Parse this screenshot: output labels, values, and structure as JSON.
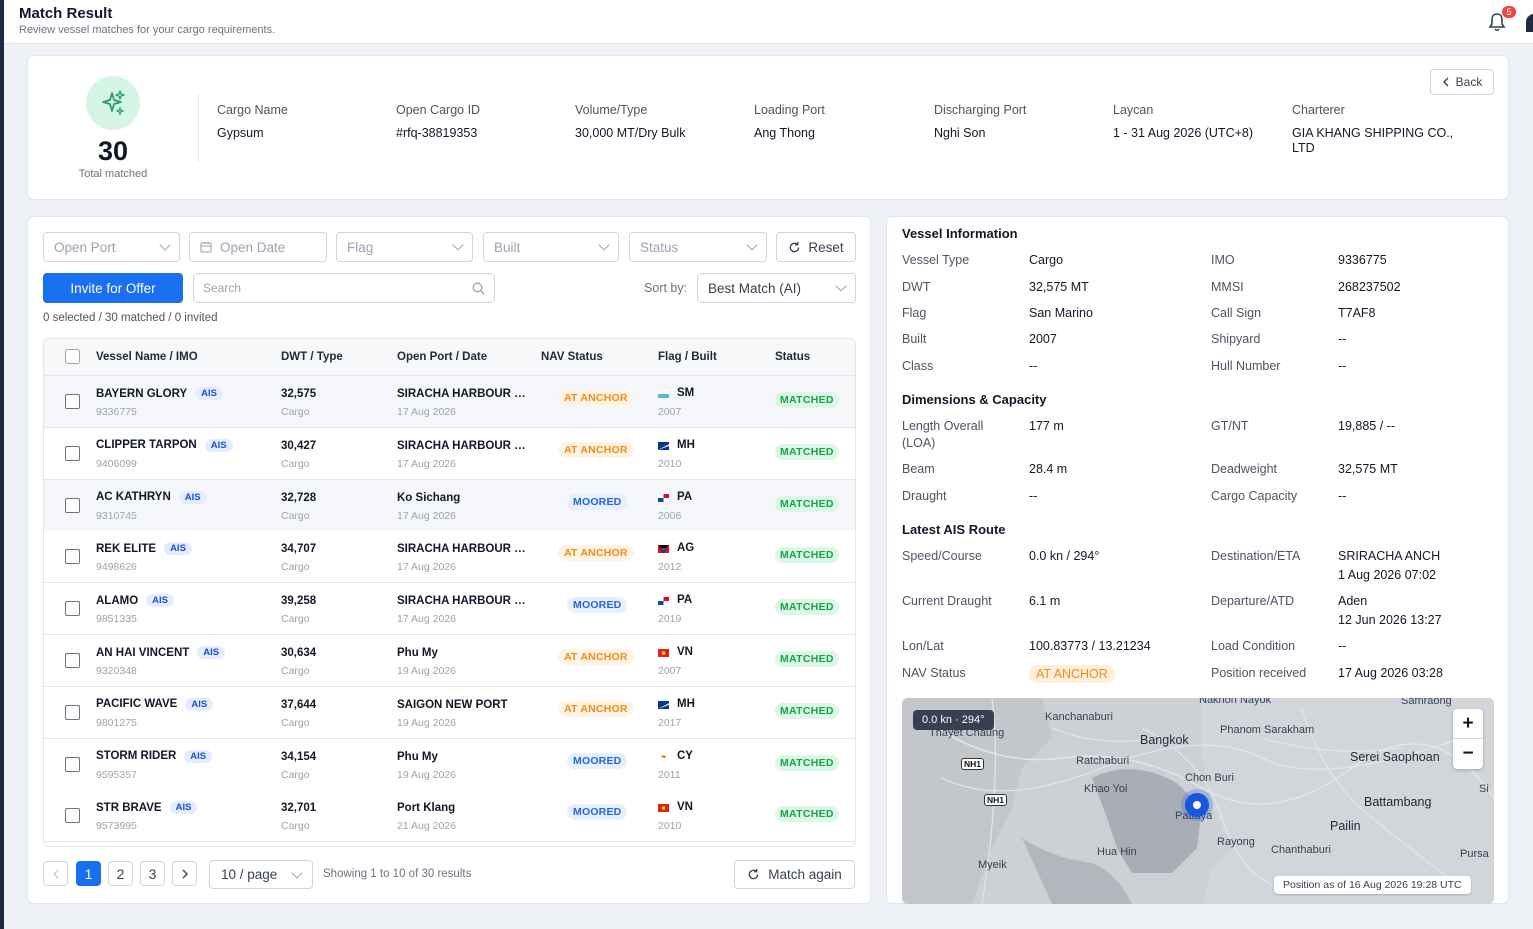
{
  "header": {
    "title": "Match Result",
    "subtitle": "Review vessel matches for your cargo requirements.",
    "notification_count": "5"
  },
  "summary": {
    "total": "30",
    "total_label": "Total matched",
    "back_label": "Back",
    "fields": [
      {
        "label": "Cargo Name",
        "value": "Gypsum"
      },
      {
        "label": "Open Cargo ID",
        "value": "#rfq-38819353"
      },
      {
        "label": "Volume/Type",
        "value": "30,000 MT/Dry Bulk"
      },
      {
        "label": "Loading Port",
        "value": "Ang Thong"
      },
      {
        "label": "Discharging Port",
        "value": "Nghi Son"
      },
      {
        "label": "Laycan",
        "value": "1 - 31 Aug 2026 (UTC+8)"
      },
      {
        "label": "Charterer",
        "value": "GIA KHANG SHIPPING CO., LTD"
      }
    ]
  },
  "filters": {
    "open_port": "Open Port",
    "open_date": "Open Date",
    "flag": "Flag",
    "built": "Built",
    "status": "Status",
    "reset": "Reset"
  },
  "actions": {
    "invite": "Invite for Offer",
    "search_placeholder": "Search",
    "sort_label": "Sort by:",
    "sort_value": "Best Match (AI)",
    "counts": "0 selected / 30 matched / 0 invited"
  },
  "table": {
    "columns": [
      "Vessel Name / IMO",
      "DWT / Type",
      "Open Port / Date",
      "NAV Status",
      "Flag / Built",
      "Status"
    ],
    "ais_label": "AIS",
    "rows": [
      {
        "name": "BAYERN GLORY",
        "imo": "9336775",
        "dwt": "32,575",
        "type": "Cargo",
        "port": "SIRACHA HARBOUR PORT",
        "date": "17 Aug 2026",
        "nav": "AT ANCHOR",
        "flag": "SM",
        "built": "2007",
        "status": "MATCHED"
      },
      {
        "name": "CLIPPER TARPON",
        "imo": "9406099",
        "dwt": "30,427",
        "type": "Cargo",
        "port": "SIRACHA HARBOUR PORT",
        "date": "17 Aug 2026",
        "nav": "AT ANCHOR",
        "flag": "MH",
        "built": "2010",
        "status": "MATCHED"
      },
      {
        "name": "AC KATHRYN",
        "imo": "9310745",
        "dwt": "32,728",
        "type": "Cargo",
        "port": "Ko Sichang",
        "date": "17 Aug 2026",
        "nav": "MOORED",
        "flag": "PA",
        "built": "2006",
        "status": "MATCHED"
      },
      {
        "name": "REK ELITE",
        "imo": "9498626",
        "dwt": "34,707",
        "type": "Cargo",
        "port": "SIRACHA HARBOUR PORT",
        "date": "17 Aug 2026",
        "nav": "AT ANCHOR",
        "flag": "AG",
        "built": "2012",
        "status": "MATCHED"
      },
      {
        "name": "ALAMO",
        "imo": "9851335",
        "dwt": "39,258",
        "type": "Cargo",
        "port": "SIRACHA HARBOUR PORT",
        "date": "17 Aug 2026",
        "nav": "MOORED",
        "flag": "PA",
        "built": "2019",
        "status": "MATCHED"
      },
      {
        "name": "AN HAI VINCENT",
        "imo": "9320348",
        "dwt": "30,634",
        "type": "Cargo",
        "port": "Phu My",
        "date": "19 Aug 2026",
        "nav": "AT ANCHOR",
        "flag": "VN",
        "built": "2007",
        "status": "MATCHED"
      },
      {
        "name": "PACIFIC WAVE",
        "imo": "9801275",
        "dwt": "37,644",
        "type": "Cargo",
        "port": "SAIGON NEW PORT",
        "date": "19 Aug 2026",
        "nav": "AT ANCHOR",
        "flag": "MH",
        "built": "2017",
        "status": "MATCHED"
      },
      {
        "name": "STORM RIDER",
        "imo": "9595357",
        "dwt": "34,154",
        "type": "Cargo",
        "port": "Phu My",
        "date": "19 Aug 2026",
        "nav": "MOORED",
        "flag": "CY",
        "built": "2011",
        "status": "MATCHED"
      },
      {
        "name": "STR BRAVE",
        "imo": "9573995",
        "dwt": "32,701",
        "type": "Cargo",
        "port": "Port Klang",
        "date": "21 Aug 2026",
        "nav": "MOORED",
        "flag": "VN",
        "built": "2010",
        "status": "MATCHED"
      }
    ]
  },
  "pagination": {
    "pages": [
      "1",
      "2",
      "3"
    ],
    "per_page": "10 / page",
    "showing": "Showing 1 to 10 of 30 results",
    "match_again": "Match again"
  },
  "vessel_info": {
    "title": "Vessel Information",
    "rows": [
      {
        "l1": "Vessel Type",
        "v1": "Cargo",
        "l2": "IMO",
        "v2": "9336775"
      },
      {
        "l1": "DWT",
        "v1": "32,575 MT",
        "l2": "MMSI",
        "v2": "268237502"
      },
      {
        "l1": "Flag",
        "v1": "San Marino",
        "l2": "Call Sign",
        "v2": "T7AF8"
      },
      {
        "l1": "Built",
        "v1": "2007",
        "l2": "Shipyard",
        "v2": "--"
      },
      {
        "l1": "Class",
        "v1": "--",
        "l2": "Hull Number",
        "v2": "--"
      }
    ]
  },
  "dimensions": {
    "title": "Dimensions & Capacity",
    "loa_label": "Length Overall (LOA)",
    "loa": "177 m",
    "gtnt_label": "GT/NT",
    "gtnt": "19,885 / --",
    "beam_label": "Beam",
    "beam": "28.4 m",
    "deadweight_label": "Deadweight",
    "deadweight": "32,575 MT",
    "draught_label": "Draught",
    "draught": "--",
    "capacity_label": "Cargo Capacity",
    "capacity": "--"
  },
  "ais_route": {
    "title": "Latest AIS Route",
    "speed_label": "Speed/Course",
    "speed": "0.0 kn / 294°",
    "dest_label": "Destination/ETA",
    "dest": "SRIRACHA ANCH",
    "eta": "1 Aug 2026 07:02",
    "cur_draught_label": "Current Draught",
    "cur_draught": "6.1 m",
    "dep_label": "Departure/ATD",
    "dep": "Aden",
    "atd": "12 Jun 2026 13:27",
    "lonlat_label": "Lon/Lat",
    "lonlat": "100.83773 / 13.21234",
    "load_label": "Load Condition",
    "load": "--",
    "nav_label": "NAV Status",
    "nav": "AT ANCHOR",
    "pos_label": "Position received",
    "pos": "17 Aug 2026 03:28"
  },
  "map": {
    "speed_badge": "0.0 kn · 294°",
    "position_asof": "Position as of 16 Aug 2026 19:28 UTC",
    "labels": [
      "Nakhon Nayok",
      "Samraong",
      "Kanchanaburi",
      "Phanom Sarakham",
      "Thayet Chaung",
      "Bangkok",
      "Serei Saophoan",
      "Ratchaburi",
      "Chon Buri",
      "Khao Yoi",
      "Battambang",
      "Pattaya",
      "Pailin",
      "Rayong",
      "Pursa",
      "Hua Hin",
      "Chanthaburi",
      "Myeik",
      "Si"
    ],
    "roads": [
      "NH1",
      "NH1"
    ]
  }
}
